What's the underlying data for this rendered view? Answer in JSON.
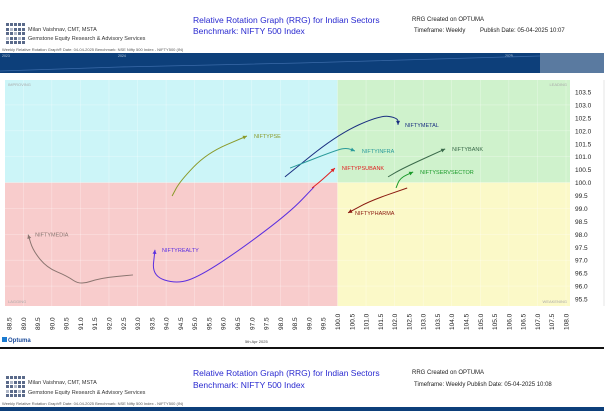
{
  "header": {
    "author": "Milan Vaishnav, CMT, MSTA",
    "company": "Gemstone Equity Research & Advisory Services",
    "title": "Relative Rotation Graph (RRG) for Indian Sectors",
    "benchmark": "Benchmark: NIFTY 500 Index",
    "created": "RRG Created on OPTUMA",
    "timeframe": "Timeframe: Weekly",
    "publish": "Publish Date: 05-04-2025 10:07",
    "subtitle": "Weekly Relative Rotation Graph®   Date: 04-04-2025   Benchmark: NSE Nifty 500 Index - NIFTY500 (IN)"
  },
  "timeline": {
    "labels": [
      "2023",
      "2024",
      "2025"
    ],
    "color": "#0d3f7a"
  },
  "footer": {
    "brand": "Optuma",
    "date": "5th Apr 2025"
  },
  "header2": {
    "author": "Milan Vaishnav, CMT, MSTA",
    "company": "Gemstone Equity Research & Advisory Services",
    "title": "Relative Rotation Graph (RRG) for Indian Sectors",
    "benchmark": "Benchmark: NIFTY 500 Index",
    "created": "RRG Created on OPTUMA",
    "timeframe_publish": "Timeframe: Weekly  Publish Date: 05-04-2025 10:08",
    "subtitle": "Weekly Relative Rotation Graph®   Date: 04-04-2025   Benchmark: NSE Nifty 500 Index - NIFTY500 (IN)"
  },
  "chart_data": {
    "type": "scatter",
    "xlim": [
      88.5,
      108.0
    ],
    "ylim": [
      95.5,
      103.5
    ],
    "center": [
      100,
      100
    ],
    "x_ticks": [
      "88.5",
      "89.0",
      "89.5",
      "90.0",
      "90.5",
      "91.0",
      "91.5",
      "92.0",
      "92.5",
      "93.0",
      "93.5",
      "94.0",
      "94.5",
      "95.0",
      "95.5",
      "96.0",
      "96.5",
      "97.0",
      "97.5",
      "98.0",
      "98.5",
      "99.0",
      "99.5",
      "100.0",
      "100.5",
      "101.0",
      "101.5",
      "102.0",
      "102.5",
      "103.0",
      "103.5",
      "104.0",
      "104.5",
      "105.0",
      "105.5",
      "106.0",
      "106.5",
      "107.0",
      "107.5",
      "108.0"
    ],
    "y_ticks": [
      "103.5",
      "103.0",
      "102.5",
      "102.0",
      "101.5",
      "101.0",
      "100.5",
      "100.0",
      "99.5",
      "99.0",
      "98.5",
      "98.0",
      "97.5",
      "97.0",
      "96.5",
      "96.0",
      "95.5"
    ],
    "quadrants": [
      {
        "name": "IMPROVING",
        "color": "#ccf5f8"
      },
      {
        "name": "LEADING",
        "color": "#cff2cc"
      },
      {
        "name": "LAGGING",
        "color": "#f8cccc"
      },
      {
        "name": "WEAKENING",
        "color": "#fbf9c8"
      }
    ],
    "grid": true,
    "series": [
      {
        "name": "NIFTYPSE",
        "color": "#8a9a2a",
        "points": [
          [
            94.21,
            99.48
          ],
          [
            94.49,
            100.06
          ],
          [
            95.43,
            101.14
          ],
          [
            96.83,
            101.8
          ]
        ]
      },
      {
        "name": "NIFTYMEDIA",
        "color": "#8a7570",
        "points": [
          [
            92.84,
            96.43
          ],
          [
            91.69,
            96.31
          ],
          [
            90.99,
            96.04
          ],
          [
            90.53,
            96.39
          ],
          [
            89.83,
            96.71
          ],
          [
            89.34,
            97.37
          ],
          [
            89.17,
            97.99
          ]
        ]
      },
      {
        "name": "NIFTYREALTY",
        "color": "#5a2ee0",
        "points": [
          [
            99.18,
            99.83
          ],
          [
            98.34,
            98.86
          ],
          [
            96.59,
            97.4
          ],
          [
            95.19,
            96.39
          ],
          [
            94.38,
            96.08
          ],
          [
            93.51,
            96.39
          ],
          [
            93.61,
            97.4
          ]
        ]
      },
      {
        "name": "NIFTYPSUBANK",
        "color": "#e02020",
        "points": [
          [
            99.11,
            99.79
          ],
          [
            99.46,
            100.1
          ],
          [
            99.91,
            100.56
          ]
        ]
      },
      {
        "name": "NIFTYMETAL",
        "color": "#1a2f80",
        "points": [
          [
            98.16,
            100.22
          ],
          [
            99.98,
            101.84
          ],
          [
            101.49,
            102.61
          ],
          [
            102.12,
            102.5
          ],
          [
            102.12,
            102.23
          ]
        ]
      },
      {
        "name": "NIFTYINFRA",
        "color": "#2a9a9a",
        "points": [
          [
            98.34,
            100.56
          ],
          [
            99.98,
            101.26
          ],
          [
            100.33,
            101.34
          ],
          [
            100.61,
            101.22
          ]
        ]
      },
      {
        "name": "NIFTYBANK",
        "color": "#3a6a4a",
        "points": [
          [
            101.77,
            100.22
          ],
          [
            102.3,
            100.56
          ],
          [
            103.77,
            101.3
          ]
        ]
      },
      {
        "name": "NIFTYSERVSECTOR",
        "color": "#1a9a2a",
        "points": [
          [
            102.05,
            99.79
          ],
          [
            102.19,
            100.18
          ],
          [
            102.65,
            100.41
          ]
        ]
      },
      {
        "name": "NIFTYPHARMA",
        "color": "#8a1a10",
        "points": [
          [
            102.44,
            99.79
          ],
          [
            101.14,
            99.29
          ],
          [
            100.37,
            98.83
          ]
        ]
      }
    ]
  }
}
